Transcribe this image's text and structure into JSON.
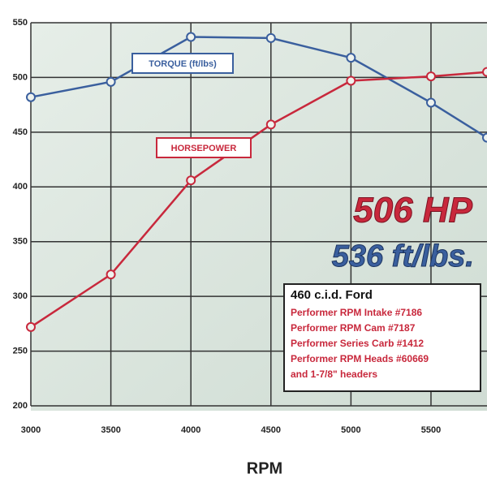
{
  "chart_data": {
    "type": "line",
    "x_label": "RPM",
    "x": [
      3000,
      3500,
      4000,
      4500,
      5000,
      5500,
      5850
    ],
    "series": [
      {
        "name": "TORQUE (ft/lbs)",
        "color": "#3a5f9e",
        "values": [
          482,
          496,
          537,
          536,
          518,
          477,
          445
        ]
      },
      {
        "name": "HORSEPOWER",
        "color": "#c8283c",
        "values": [
          272,
          320,
          406,
          457,
          497,
          501,
          505
        ]
      }
    ],
    "xlim": [
      3000,
      5850
    ],
    "xticks": [
      3000,
      3500,
      4000,
      4500,
      5000,
      5500
    ],
    "ylim": [
      200,
      550
    ],
    "yticks": [
      200,
      250,
      300,
      350,
      400,
      450,
      500,
      550
    ],
    "grid": true,
    "headline": [
      "506 HP",
      "536 ft/lbs."
    ],
    "spec_box": {
      "title": "460 c.i.d. Ford",
      "lines": [
        "Performer RPM Intake #7186",
        "Performer RPM Cam #7187",
        "Performer Series Carb #1412",
        "Performer RPM Heads #60669",
        "and 1-7/8\" headers"
      ]
    }
  }
}
